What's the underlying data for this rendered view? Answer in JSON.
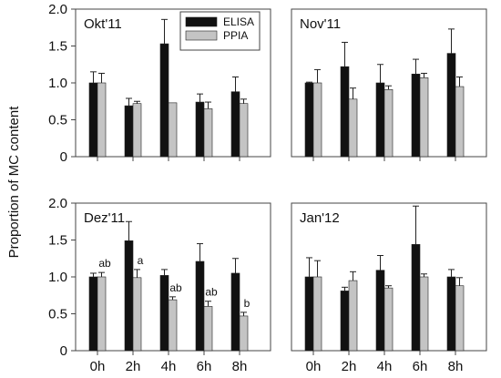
{
  "chart_data": {
    "type": "bar",
    "ylabel": "Proportion of MC content",
    "yticks": [
      "0",
      "0.5",
      "1.0",
      "1.5",
      "2.0"
    ],
    "ylim": [
      0,
      2.0
    ],
    "categories": [
      "0h",
      "2h",
      "4h",
      "6h",
      "8h"
    ],
    "legend": {
      "placement": "top-right of first panel",
      "entries": [
        "ELISA",
        "PPIA"
      ]
    },
    "colors": {
      "ELISA": "#111111",
      "PPIA": "#c4c4c4",
      "axis": "#444444"
    },
    "panels": [
      {
        "title": "Okt'11",
        "series": [
          {
            "name": "ELISA",
            "values": [
              1.0,
              0.69,
              1.53,
              0.74,
              0.88
            ],
            "errors": [
              0.15,
              0.1,
              0.33,
              0.11,
              0.2
            ]
          },
          {
            "name": "PPIA",
            "values": [
              1.0,
              0.72,
              0.73,
              0.65,
              0.72
            ],
            "errors": [
              0.13,
              0.03,
              0.0,
              0.09,
              0.06
            ]
          }
        ],
        "annotations": []
      },
      {
        "title": "Nov'11",
        "series": [
          {
            "name": "ELISA",
            "values": [
              1.0,
              1.22,
              1.0,
              1.12,
              1.4
            ],
            "errors": [
              0.01,
              0.33,
              0.25,
              0.2,
              0.33
            ]
          },
          {
            "name": "PPIA",
            "values": [
              1.0,
              0.78,
              0.91,
              1.07,
              0.95
            ],
            "errors": [
              0.18,
              0.15,
              0.05,
              0.06,
              0.13
            ]
          }
        ],
        "annotations": []
      },
      {
        "title": "Dez'11",
        "series": [
          {
            "name": "ELISA",
            "values": [
              1.0,
              1.49,
              1.02,
              1.21,
              1.05
            ],
            "errors": [
              0.05,
              0.26,
              0.08,
              0.24,
              0.2
            ]
          },
          {
            "name": "PPIA",
            "values": [
              1.0,
              0.99,
              0.69,
              0.6,
              0.47
            ],
            "errors": [
              0.06,
              0.11,
              0.04,
              0.07,
              0.05
            ]
          }
        ],
        "annotations": [
          "ab",
          "a",
          "ab",
          "ab",
          "b"
        ]
      },
      {
        "title": "Jan'12",
        "series": [
          {
            "name": "ELISA",
            "values": [
              1.0,
              0.81,
              1.09,
              1.44,
              1.0
            ],
            "errors": [
              0.26,
              0.05,
              0.2,
              0.52,
              0.1
            ]
          },
          {
            "name": "PPIA",
            "values": [
              1.0,
              0.95,
              0.85,
              1.0,
              0.88
            ],
            "errors": [
              0.22,
              0.12,
              0.03,
              0.04,
              0.11
            ]
          }
        ],
        "annotations": []
      }
    ]
  }
}
